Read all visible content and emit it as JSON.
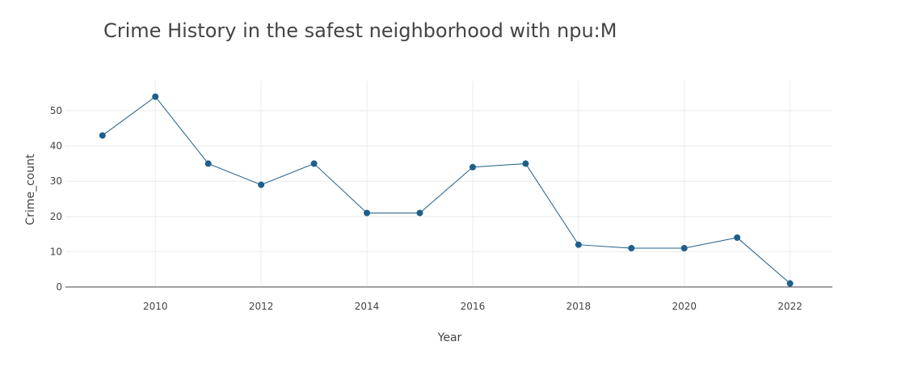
{
  "chart_data": {
    "type": "line",
    "title": "Crime History in the safest neighborhood with npu:M",
    "xlabel": "Year",
    "ylabel": "Crime_count",
    "x": [
      2009,
      2010,
      2011,
      2012,
      2013,
      2014,
      2015,
      2016,
      2017,
      2018,
      2019,
      2020,
      2021,
      2022
    ],
    "series": [
      {
        "values": [
          43,
          54,
          35,
          29,
          35,
          21,
          21,
          34,
          35,
          12,
          11,
          11,
          14,
          1
        ]
      }
    ],
    "xticks": [
      "2010",
      "2012",
      "2014",
      "2016",
      "2018",
      "2020",
      "2022"
    ],
    "yticks": [
      "0",
      "10",
      "20",
      "30",
      "40",
      "50"
    ],
    "xlim": [
      2008.3,
      2022.8
    ],
    "ylim": [
      0,
      58.5
    ],
    "grid": true,
    "legend": "none",
    "colors": {
      "line": "#1f5f8b",
      "marker": "#1f5f8b",
      "grid": "#ebebeb",
      "axis_zero": "#444444",
      "text": "#444444"
    }
  }
}
